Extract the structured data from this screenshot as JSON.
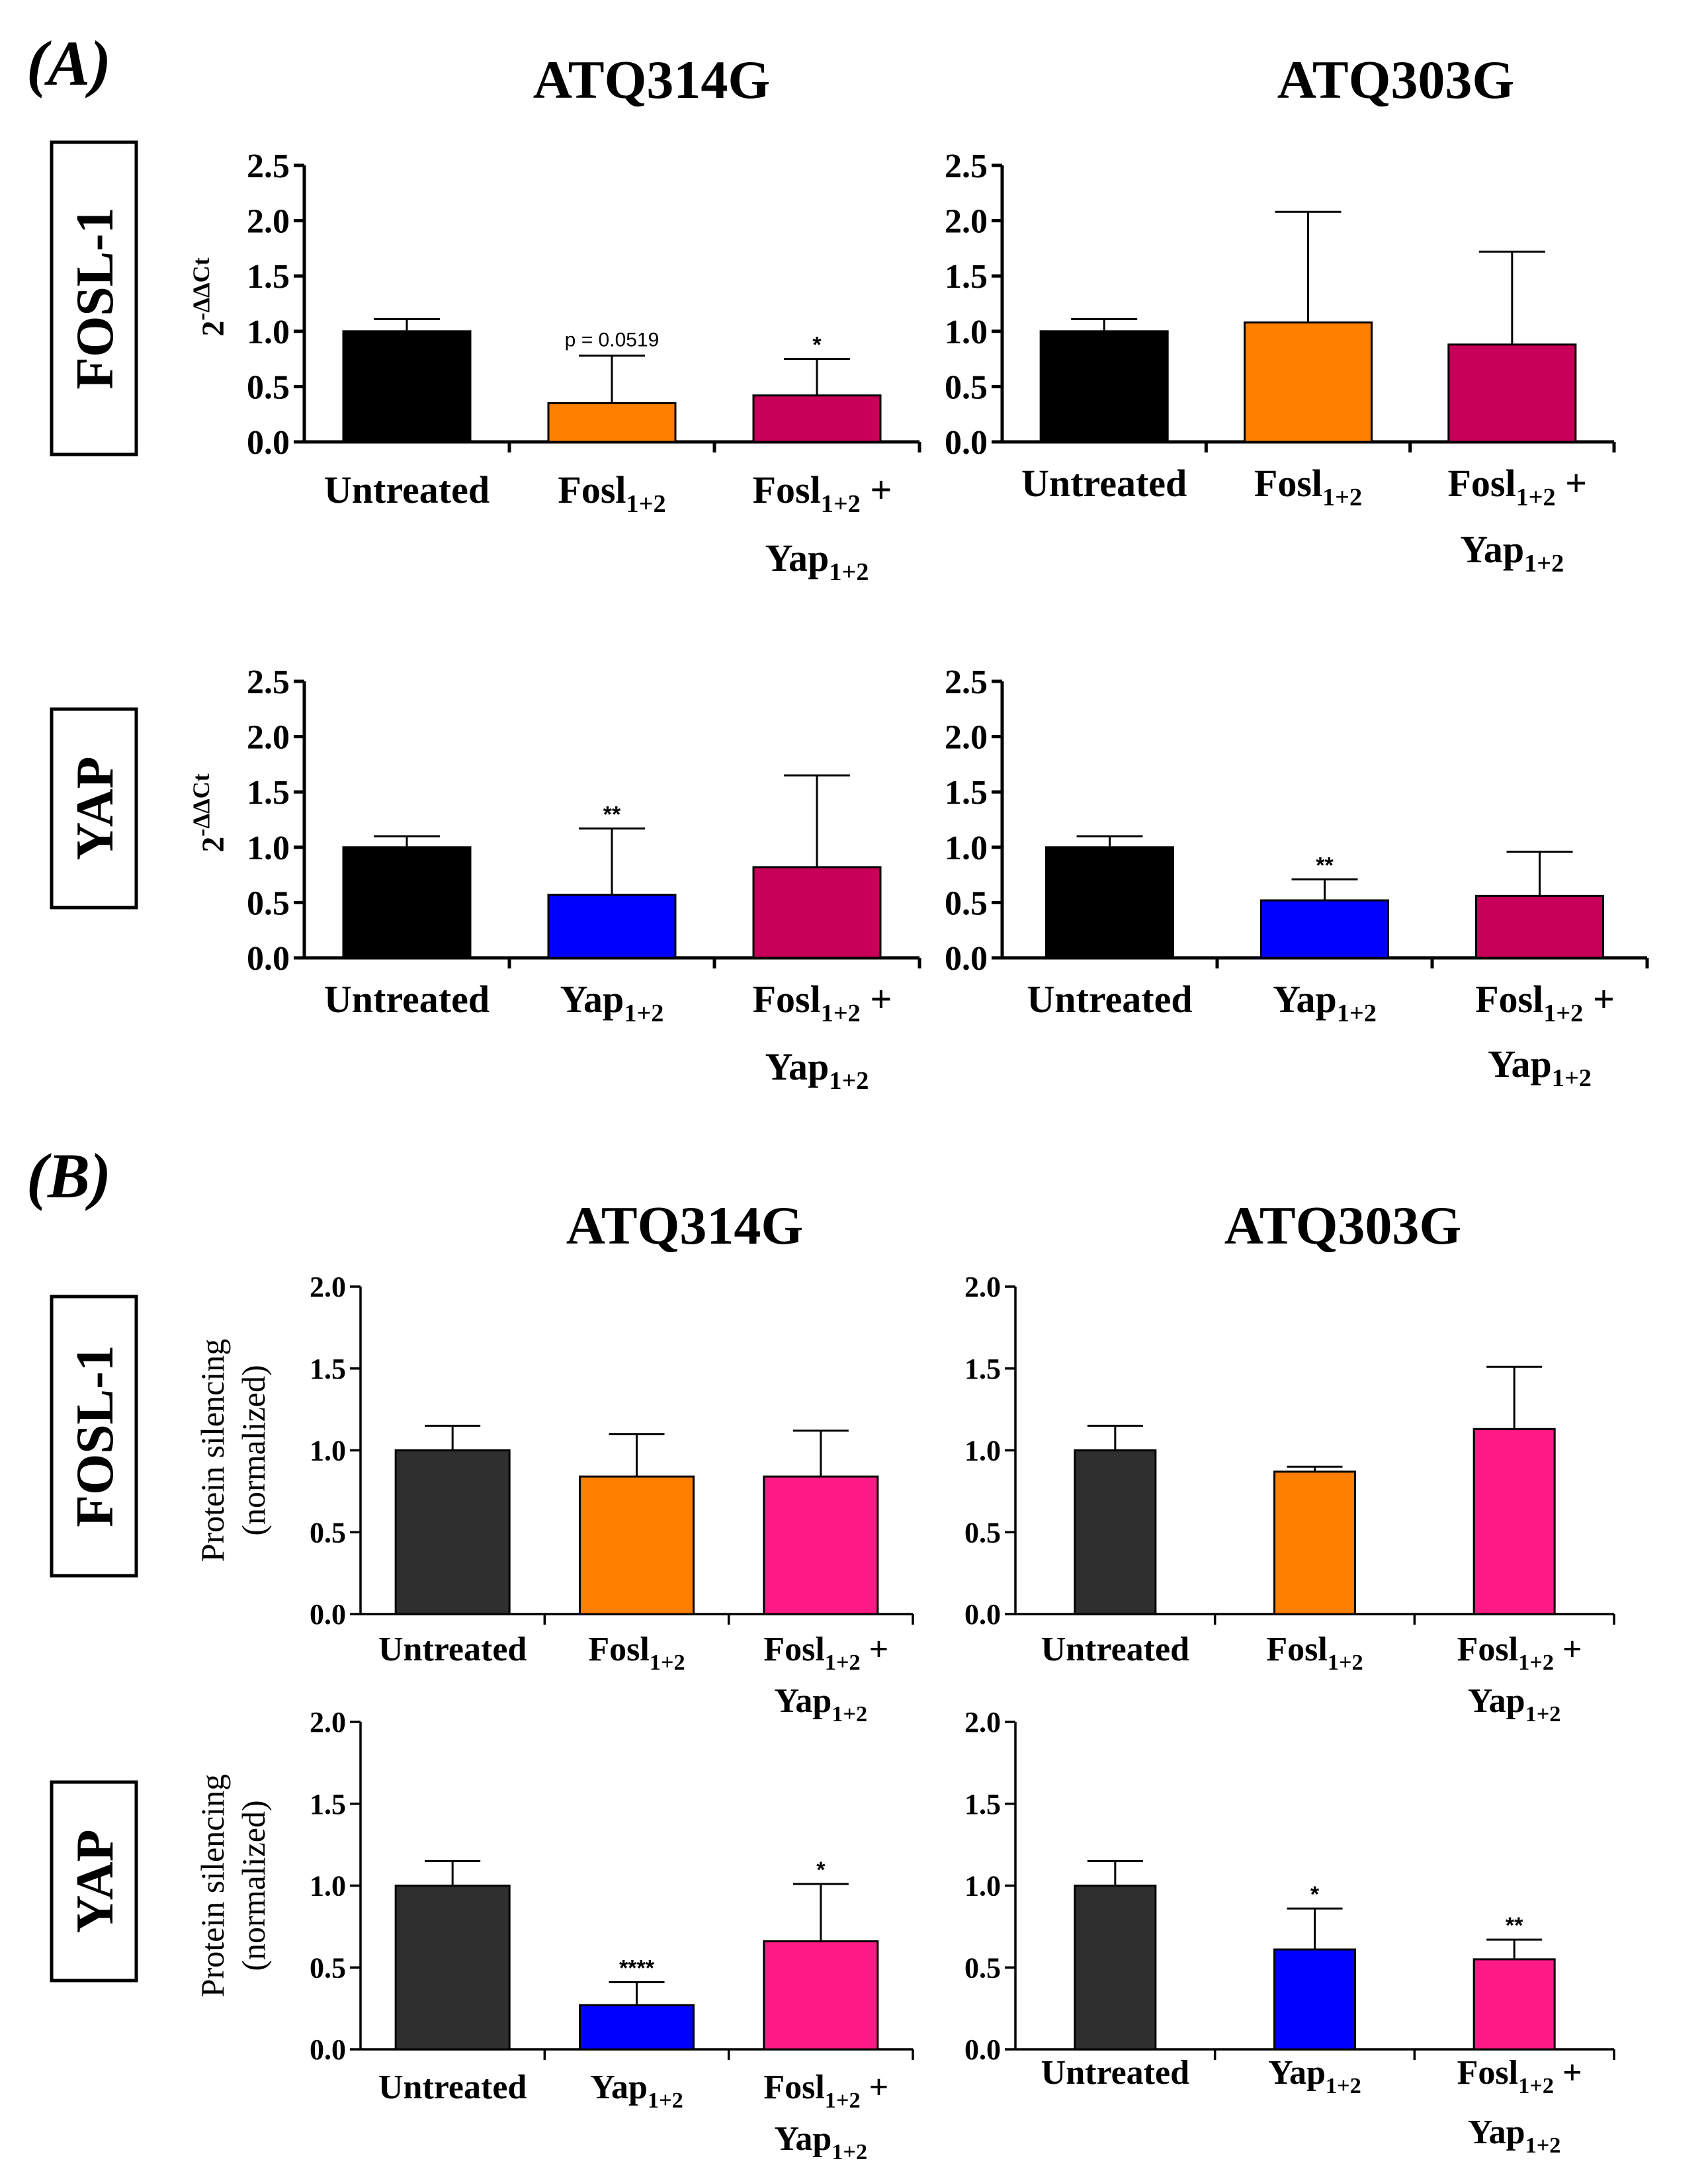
{
  "panel_labels": [
    "(A)",
    "(B)"
  ],
  "column_titles": {
    "A": [
      "ATQ314G",
      "ATQ303G"
    ],
    "B": [
      "ATQ314G",
      "ATQ303G"
    ]
  },
  "row_labels": {
    "A": [
      "FOSL-1",
      "YAP"
    ],
    "B": [
      "FOSL-1",
      "YAP"
    ]
  },
  "colors": {
    "black": "#000000",
    "dark_gray": "#2f2f2f",
    "orange": "#ff7f00",
    "crimson": "#c8005a",
    "blue": "#0000ff",
    "pink": "#ff1a85"
  },
  "chart_data": [
    {
      "id": "A-FOSL1-ATQ314G",
      "panel": "A",
      "type": "bar",
      "categories": [
        "Untreated",
        "Fosl1+2",
        "Fosl1+2 + Yap1+2"
      ],
      "values": [
        1.0,
        0.35,
        0.42
      ],
      "errors": [
        0.11,
        0.43,
        0.33
      ],
      "colors": [
        "#000000",
        "#ff7f00",
        "#c8005a"
      ],
      "annotations": [
        "",
        "p = 0.0519",
        "*"
      ],
      "ylabel": "2-ΔΔCt",
      "ylim": [
        0,
        2.5
      ],
      "yticks": [
        0.0,
        0.5,
        1.0,
        1.5,
        2.0,
        2.5
      ]
    },
    {
      "id": "A-FOSL1-ATQ303G",
      "panel": "A",
      "type": "bar",
      "categories": [
        "Untreated",
        "Fosl1+2",
        "Fosl1+2 + Yap1+2"
      ],
      "values": [
        1.0,
        1.08,
        0.88
      ],
      "errors": [
        0.11,
        1.0,
        0.84
      ],
      "colors": [
        "#000000",
        "#ff7f00",
        "#c8005a"
      ],
      "annotations": [
        "",
        "",
        ""
      ],
      "ylabel": "",
      "ylim": [
        0,
        2.5
      ],
      "yticks": [
        0.0,
        0.5,
        1.0,
        1.5,
        2.0,
        2.5
      ]
    },
    {
      "id": "A-YAP-ATQ314G",
      "panel": "A",
      "type": "bar",
      "categories": [
        "Untreated",
        "Yap1+2",
        "Fosl1+2 + Yap1+2"
      ],
      "values": [
        1.0,
        0.57,
        0.82
      ],
      "errors": [
        0.1,
        0.6,
        0.83
      ],
      "colors": [
        "#000000",
        "#0000ff",
        "#c8005a"
      ],
      "annotations": [
        "",
        "**",
        ""
      ],
      "ylabel": "2-ΔΔCt",
      "ylim": [
        0,
        2.5
      ],
      "yticks": [
        0.0,
        0.5,
        1.0,
        1.5,
        2.0,
        2.5
      ]
    },
    {
      "id": "A-YAP-ATQ303G",
      "panel": "A",
      "type": "bar",
      "categories": [
        "Untreated",
        "Yap1+2",
        "Fosl1+2 + Yap1+2"
      ],
      "values": [
        1.0,
        0.52,
        0.56
      ],
      "errors": [
        0.1,
        0.19,
        0.4
      ],
      "colors": [
        "#000000",
        "#0000ff",
        "#c8005a"
      ],
      "annotations": [
        "",
        "**",
        ""
      ],
      "ylabel": "",
      "ylim": [
        0,
        2.5
      ],
      "yticks": [
        0.0,
        0.5,
        1.0,
        1.5,
        2.0,
        2.5
      ]
    },
    {
      "id": "B-FOSL1-ATQ314G",
      "panel": "B",
      "type": "bar",
      "categories": [
        "Untreated",
        "Fosl1+2",
        "Fosl1+2 + Yap1+2"
      ],
      "values": [
        1.0,
        0.84,
        0.84
      ],
      "errors": [
        0.15,
        0.26,
        0.28
      ],
      "colors": [
        "#2f2f2f",
        "#ff7f00",
        "#ff1a85"
      ],
      "annotations": [
        "",
        "",
        ""
      ],
      "ylabel": "Protein silencing (normalized)",
      "ylim": [
        0,
        2.0
      ],
      "yticks": [
        0.0,
        0.5,
        1.0,
        1.5,
        2.0
      ]
    },
    {
      "id": "B-FOSL1-ATQ303G",
      "panel": "B",
      "type": "bar",
      "categories": [
        "Untreated",
        "Fosl1+2",
        "Fosl1+2 + Yap1+2"
      ],
      "values": [
        1.0,
        0.87,
        1.13
      ],
      "errors": [
        0.15,
        0.03,
        0.38
      ],
      "colors": [
        "#2f2f2f",
        "#ff7f00",
        "#ff1a85"
      ],
      "annotations": [
        "",
        "",
        ""
      ],
      "ylabel": "",
      "ylim": [
        0,
        2.0
      ],
      "yticks": [
        0.0,
        0.5,
        1.0,
        1.5,
        2.0
      ]
    },
    {
      "id": "B-YAP-ATQ314G",
      "panel": "B",
      "type": "bar",
      "categories": [
        "Untreated",
        "Yap1+2",
        "Fosl1+2 + Yap1+2"
      ],
      "values": [
        1.0,
        0.27,
        0.66
      ],
      "errors": [
        0.15,
        0.14,
        0.35
      ],
      "colors": [
        "#2f2f2f",
        "#0000ff",
        "#ff1a85"
      ],
      "annotations": [
        "",
        "****",
        "*"
      ],
      "ylabel": "Protein silencing (normalized)",
      "ylim": [
        0,
        2.0
      ],
      "yticks": [
        0.0,
        0.5,
        1.0,
        1.5,
        2.0
      ]
    },
    {
      "id": "B-YAP-ATQ303G",
      "panel": "B",
      "type": "bar",
      "categories": [
        "Untreated",
        "Yap1+2",
        "Fosl1+2 + Yap1+2"
      ],
      "values": [
        1.0,
        0.61,
        0.55
      ],
      "errors": [
        0.15,
        0.25,
        0.12
      ],
      "colors": [
        "#2f2f2f",
        "#0000ff",
        "#ff1a85"
      ],
      "annotations": [
        "",
        "*",
        "**"
      ],
      "ylabel": "",
      "ylim": [
        0,
        2.0
      ],
      "yticks": [
        0.0,
        0.5,
        1.0,
        1.5,
        2.0
      ]
    }
  ]
}
